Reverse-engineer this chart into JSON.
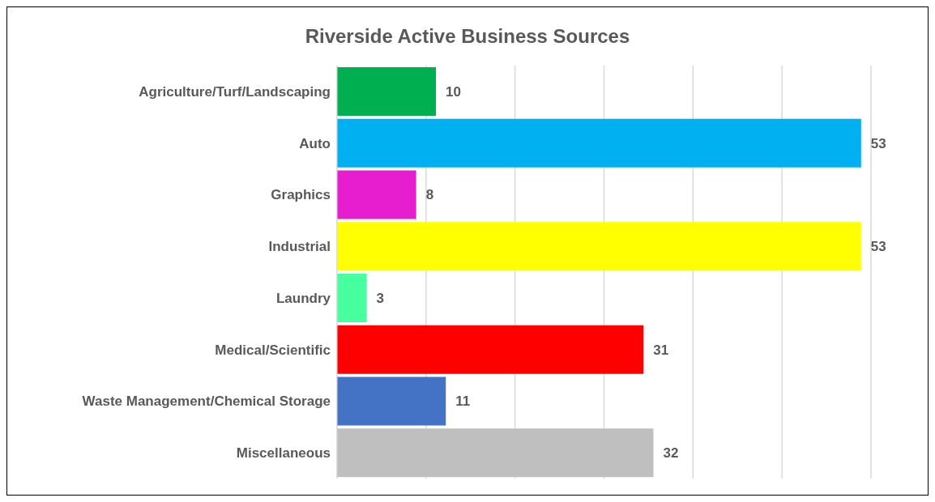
{
  "chart_data": {
    "type": "bar",
    "orientation": "horizontal",
    "title": "Riverside Active Business Sources",
    "categories": [
      "Agriculture/Turf/Landscaping",
      "Auto",
      "Graphics",
      "Industrial",
      "Laundry",
      "Medical/Scientific",
      "Waste Management/Chemical Storage",
      "Miscellaneous"
    ],
    "values": [
      10,
      53,
      8,
      53,
      3,
      31,
      11,
      32
    ],
    "colors": [
      "#00b050",
      "#00b0f0",
      "#e61ecf",
      "#ffff00",
      "#47ff9e",
      "#ff0000",
      "#4472c4",
      "#bfbfbf"
    ],
    "grid": "x",
    "tick_labels": "y",
    "data_labels": true
  }
}
